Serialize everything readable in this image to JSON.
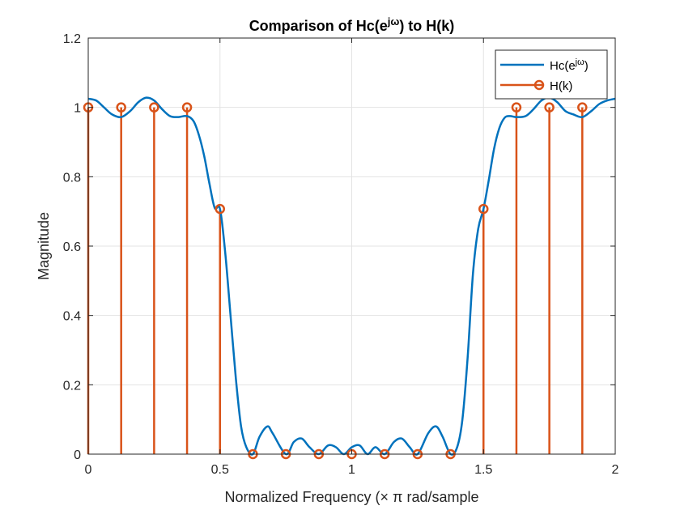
{
  "chart_data": {
    "type": "line",
    "title": "Comparison of Hc(e^{jω}) to H(k)",
    "title_parts": {
      "before": "Comparison of Hc(e",
      "sup": "jω",
      "after": ") to H(k)"
    },
    "xlabel": "Normalized Frequency (× π rad/sample",
    "ylabel": "Magnitude",
    "xlim": [
      0,
      2
    ],
    "ylim": [
      0,
      1.2
    ],
    "xticks": [
      0,
      0.5,
      1,
      1.5,
      2
    ],
    "xtick_labels": [
      "0",
      "0.5",
      "1",
      "1.5",
      "2"
    ],
    "yticks": [
      0,
      0.2,
      0.4,
      0.6,
      0.8,
      1,
      1.2
    ],
    "ytick_labels": [
      "0",
      "0.2",
      "0.4",
      "0.6",
      "0.8",
      "1",
      "1.2"
    ],
    "grid": true,
    "legend": {
      "placement": "top-right",
      "entries": [
        {
          "label_before": "Hc(e",
          "label_sup": "jω",
          "label_after": ")",
          "style": "line"
        },
        {
          "label": "H(k)",
          "style": "stem"
        }
      ]
    },
    "series": [
      {
        "name": "Hc(e^{jω})",
        "kind": "line",
        "color": "#0072BD",
        "x": [
          0,
          0.03,
          0.06,
          0.09,
          0.125,
          0.16,
          0.19,
          0.22,
          0.25,
          0.28,
          0.31,
          0.34,
          0.375,
          0.4,
          0.42,
          0.44,
          0.46,
          0.48,
          0.5,
          0.52,
          0.54,
          0.56,
          0.58,
          0.6,
          0.625,
          0.65,
          0.68,
          0.7,
          0.75,
          0.78,
          0.81,
          0.84,
          0.875,
          0.91,
          0.94,
          0.97,
          1.0,
          1.03,
          1.06,
          1.09,
          1.125,
          1.16,
          1.19,
          1.22,
          1.25,
          1.29,
          1.32,
          1.345,
          1.375,
          1.4,
          1.42,
          1.44,
          1.46,
          1.48,
          1.5,
          1.52,
          1.54,
          1.56,
          1.58,
          1.6,
          1.625,
          1.66,
          1.69,
          1.72,
          1.75,
          1.78,
          1.81,
          1.84,
          1.875,
          1.91,
          1.94,
          1.97,
          2.0
        ],
        "y": [
          1.025,
          1.02,
          1.0,
          0.98,
          0.972,
          0.99,
          1.015,
          1.028,
          1.02,
          0.995,
          0.975,
          0.972,
          0.975,
          0.96,
          0.92,
          0.86,
          0.78,
          0.71,
          0.707,
          0.58,
          0.4,
          0.22,
          0.08,
          0.02,
          0.0,
          0.05,
          0.08,
          0.06,
          0.0,
          0.035,
          0.045,
          0.02,
          0.0,
          0.025,
          0.02,
          0.0,
          0.02,
          0.025,
          0.0,
          0.02,
          0.0,
          0.035,
          0.045,
          0.02,
          0.0,
          0.06,
          0.08,
          0.05,
          0.0,
          0.02,
          0.1,
          0.28,
          0.52,
          0.65,
          0.707,
          0.79,
          0.88,
          0.94,
          0.97,
          0.975,
          0.972,
          0.975,
          0.995,
          1.02,
          1.028,
          1.015,
          0.99,
          0.98,
          0.972,
          0.99,
          1.01,
          1.02,
          1.025
        ]
      },
      {
        "name": "H(k)",
        "kind": "stem",
        "color": "#D95319",
        "x": [
          0,
          0.125,
          0.25,
          0.375,
          0.5,
          0.625,
          0.75,
          0.875,
          1.0,
          1.125,
          1.25,
          1.375,
          1.5,
          1.625,
          1.75,
          1.875
        ],
        "y": [
          1,
          1,
          1,
          1,
          0.7071,
          0,
          0,
          0,
          0,
          0,
          0,
          0,
          0.7071,
          1,
          1,
          1
        ]
      }
    ]
  }
}
